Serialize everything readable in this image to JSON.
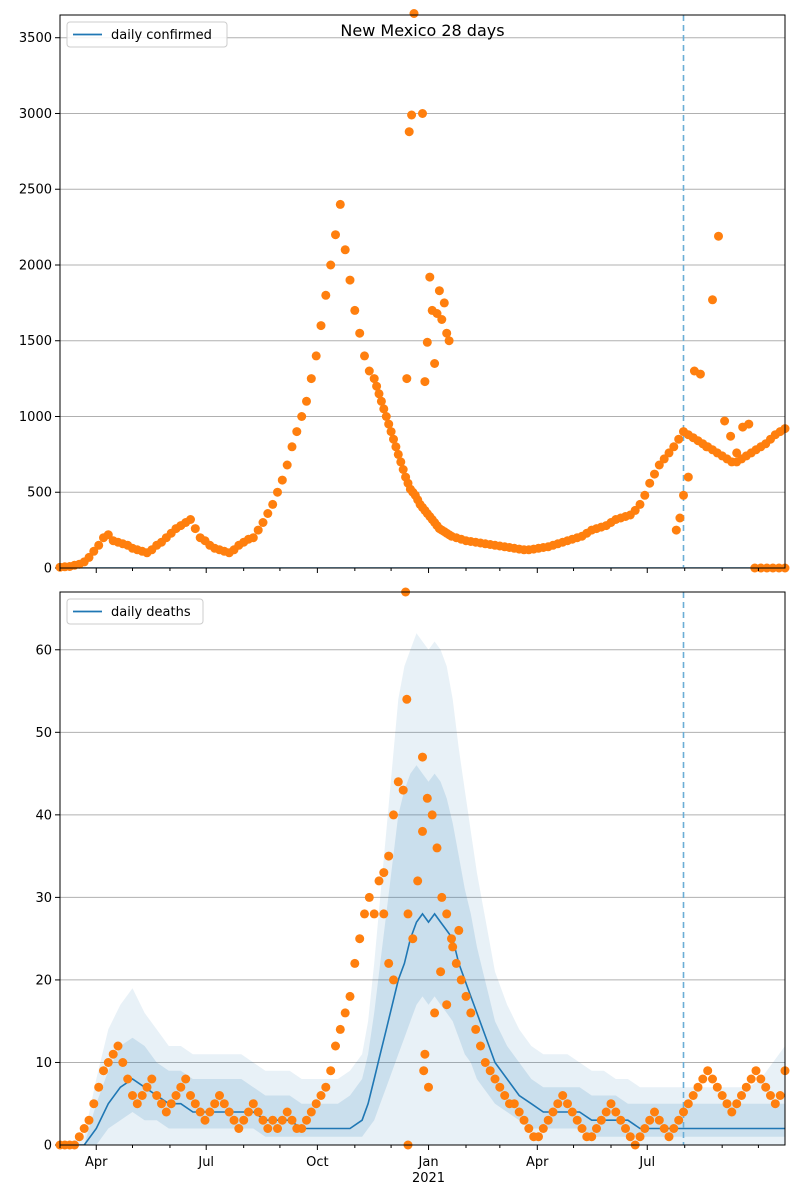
{
  "colors": {
    "line": "#1f77b4",
    "points": "#ff7f0e",
    "band": "#1f77b4",
    "grid": "#b0b0b0",
    "vline": "#6baed6"
  },
  "chart_data": [
    {
      "type": "scatter",
      "title": "New Mexico 28 days",
      "legend": {
        "label": "daily confirmed",
        "placement": "top-left"
      },
      "xlim": [
        0,
        600
      ],
      "ylim": [
        0,
        3650
      ],
      "y_ticks": [
        0,
        500,
        1000,
        1500,
        2000,
        2500,
        3000,
        3500
      ],
      "x_ticks": [
        {
          "x": 30,
          "label": "Apr"
        },
        {
          "x": 121,
          "label": "Jul"
        },
        {
          "x": 213,
          "label": "Oct"
        },
        {
          "x": 305,
          "label": "Jan"
        },
        {
          "x": 395,
          "label": "Apr"
        },
        {
          "x": 486,
          "label": "Jul"
        }
      ],
      "x_minor_ticks": [
        0,
        60,
        91,
        152,
        182,
        244,
        274,
        336,
        364,
        425,
        456,
        517,
        548,
        578
      ],
      "vline_x": 516,
      "line_series": {
        "name": "daily confirmed",
        "x": [
          0,
          600
        ],
        "y": [
          0,
          0
        ]
      },
      "points_x": [
        0,
        4,
        8,
        12,
        16,
        20,
        24,
        28,
        32,
        36,
        40,
        44,
        48,
        52,
        56,
        60,
        64,
        68,
        72,
        76,
        80,
        84,
        88,
        92,
        96,
        100,
        104,
        108,
        112,
        116,
        120,
        124,
        128,
        132,
        136,
        140,
        144,
        148,
        152,
        156,
        160,
        164,
        168,
        172,
        176,
        180,
        184,
        188,
        192,
        196,
        200,
        204,
        208,
        212,
        216,
        220,
        224,
        228,
        232,
        236,
        240,
        244,
        248,
        252,
        256,
        260,
        262,
        264,
        266,
        268,
        270,
        272,
        274,
        276,
        278,
        280,
        282,
        284,
        286,
        288,
        290,
        292,
        294,
        296,
        298,
        300,
        302,
        304,
        306,
        308,
        310,
        312,
        314,
        316,
        318,
        320,
        322,
        324,
        328,
        332,
        336,
        340,
        344,
        348,
        352,
        356,
        360,
        364,
        368,
        372,
        376,
        380,
        384,
        388,
        392,
        396,
        400,
        404,
        408,
        412,
        416,
        420,
        424,
        428,
        432,
        436,
        440,
        444,
        448,
        452,
        456,
        460,
        464,
        468,
        472,
        476,
        480,
        484,
        488,
        492,
        496,
        500,
        504,
        508,
        512,
        516,
        520,
        524,
        528,
        532,
        536,
        540,
        544,
        548,
        552,
        556,
        560,
        564,
        568,
        572,
        576,
        580,
        584,
        588,
        592,
        596,
        600,
        510,
        513,
        516,
        520,
        525,
        530,
        535,
        540,
        545,
        550,
        555,
        560,
        565,
        570,
        575,
        580,
        585,
        590,
        595,
        600,
        287,
        289,
        291,
        293,
        300,
        302,
        304,
        306,
        308,
        320,
        322,
        310,
        312,
        314,
        316,
        318
      ],
      "points_y": [
        5,
        8,
        10,
        18,
        25,
        40,
        70,
        110,
        150,
        200,
        220,
        180,
        170,
        160,
        150,
        130,
        120,
        110,
        100,
        120,
        150,
        170,
        200,
        230,
        260,
        280,
        300,
        320,
        260,
        200,
        180,
        150,
        130,
        120,
        110,
        100,
        120,
        150,
        170,
        190,
        200,
        250,
        300,
        360,
        420,
        500,
        580,
        680,
        800,
        900,
        1000,
        1100,
        1250,
        1400,
        1600,
        1800,
        2000,
        2200,
        2400,
        2100,
        1900,
        1700,
        1550,
        1400,
        1300,
        1250,
        1200,
        1150,
        1100,
        1050,
        1000,
        950,
        900,
        850,
        800,
        750,
        700,
        650,
        600,
        560,
        520,
        500,
        480,
        450,
        420,
        400,
        380,
        360,
        340,
        320,
        300,
        280,
        260,
        250,
        240,
        230,
        220,
        210,
        200,
        190,
        180,
        175,
        170,
        165,
        160,
        155,
        150,
        145,
        140,
        135,
        130,
        125,
        120,
        120,
        125,
        130,
        135,
        140,
        150,
        160,
        170,
        180,
        190,
        200,
        210,
        230,
        250,
        260,
        270,
        280,
        300,
        320,
        330,
        340,
        350,
        380,
        420,
        480,
        560,
        620,
        680,
        720,
        760,
        800,
        850,
        900,
        880,
        860,
        840,
        820,
        800,
        780,
        760,
        740,
        720,
        700,
        700,
        720,
        740,
        760,
        780,
        800,
        820,
        850,
        880,
        900,
        920,
        250,
        330,
        480,
        600,
        1300,
        1280,
        800,
        1770,
        2190,
        970,
        870,
        760,
        930,
        950,
        0,
        0,
        0,
        0,
        0,
        0,
        1250,
        2880,
        2990,
        3660,
        3000,
        1230,
        1490,
        1920,
        1700,
        1550,
        1500,
        1350,
        1680,
        1830,
        1640,
        1750
      ]
    },
    {
      "type": "scatter",
      "title": "",
      "legend": {
        "label": "daily deaths",
        "placement": "top-left"
      },
      "xlim": [
        0,
        600
      ],
      "ylim": [
        0,
        67
      ],
      "y_ticks": [
        0,
        10,
        20,
        30,
        40,
        50,
        60
      ],
      "x_ticks": [
        {
          "x": 30,
          "label": "Apr"
        },
        {
          "x": 121,
          "label": "Jul"
        },
        {
          "x": 213,
          "label": "Oct"
        },
        {
          "x": 305,
          "label": "Jan"
        },
        {
          "x": 395,
          "label": "Apr"
        },
        {
          "x": 486,
          "label": "Jul"
        }
      ],
      "x_minor_ticks": [
        0,
        60,
        91,
        152,
        182,
        244,
        274,
        336,
        364,
        425,
        456,
        517,
        548,
        578
      ],
      "x_sublabel": "2021",
      "x_sublabel_x": 305,
      "vline_x": 516,
      "line_series": {
        "name": "daily deaths",
        "x": [
          0,
          20,
          30,
          40,
          50,
          60,
          70,
          80,
          90,
          100,
          110,
          120,
          130,
          140,
          150,
          160,
          170,
          180,
          190,
          200,
          210,
          220,
          230,
          240,
          250,
          255,
          260,
          265,
          270,
          275,
          280,
          285,
          290,
          295,
          300,
          305,
          310,
          315,
          320,
          325,
          330,
          335,
          340,
          345,
          350,
          355,
          360,
          370,
          380,
          390,
          400,
          410,
          420,
          430,
          440,
          450,
          460,
          470,
          480,
          490,
          500,
          510,
          520,
          530,
          540,
          550,
          560,
          570,
          580,
          590,
          600
        ],
        "y": [
          0,
          0,
          2,
          5,
          7,
          8,
          7,
          6,
          5,
          5,
          4,
          4,
          4,
          4,
          4,
          4,
          3,
          3,
          3,
          2,
          2,
          2,
          2,
          2,
          3,
          5,
          8,
          11,
          14,
          17,
          20,
          22,
          25,
          27,
          28,
          27,
          28,
          27,
          26,
          25,
          22,
          20,
          18,
          16,
          14,
          12,
          10,
          8,
          6,
          5,
          4,
          4,
          4,
          4,
          3,
          3,
          3,
          3,
          2,
          2,
          2,
          2,
          2,
          2,
          2,
          2,
          2,
          2,
          2,
          2,
          2
        ]
      },
      "band_x": [
        0,
        20,
        30,
        40,
        50,
        60,
        70,
        80,
        90,
        100,
        110,
        120,
        130,
        140,
        150,
        160,
        170,
        180,
        190,
        200,
        210,
        220,
        230,
        240,
        250,
        255,
        260,
        265,
        270,
        275,
        280,
        285,
        290,
        295,
        300,
        305,
        310,
        315,
        320,
        325,
        330,
        335,
        340,
        345,
        350,
        355,
        360,
        370,
        380,
        390,
        400,
        410,
        420,
        430,
        440,
        450,
        460,
        470,
        480,
        490,
        500,
        510,
        520,
        530,
        540,
        550,
        560,
        570,
        580,
        590,
        600
      ],
      "band_outer_upper": [
        0,
        1,
        8,
        14,
        17,
        19,
        16,
        14,
        12,
        12,
        11,
        11,
        11,
        11,
        11,
        10,
        9,
        9,
        9,
        8,
        8,
        8,
        8,
        9,
        11,
        15,
        22,
        30,
        38,
        46,
        54,
        58,
        60,
        62,
        61,
        60,
        61,
        60,
        58,
        54,
        48,
        43,
        38,
        33,
        29,
        25,
        21,
        17,
        14,
        12,
        11,
        11,
        11,
        10,
        9,
        9,
        8,
        8,
        7,
        7,
        7,
        7,
        7,
        7,
        7,
        7,
        7,
        7,
        8,
        10,
        12
      ],
      "band_inner_upper": [
        0,
        0,
        5,
        9,
        12,
        13,
        12,
        10,
        9,
        9,
        8,
        8,
        8,
        8,
        8,
        7,
        6,
        6,
        6,
        5,
        5,
        5,
        5,
        6,
        8,
        11,
        16,
        22,
        28,
        34,
        40,
        43,
        45,
        46,
        45,
        44,
        45,
        44,
        42,
        39,
        35,
        31,
        28,
        24,
        21,
        18,
        15,
        12,
        10,
        8,
        7,
        7,
        7,
        7,
        6,
        6,
        6,
        5,
        5,
        5,
        5,
        5,
        5,
        5,
        5,
        5,
        5,
        5,
        5,
        5,
        5
      ],
      "band_inner_lower": [
        0,
        0,
        0,
        2,
        3,
        4,
        3,
        3,
        2,
        2,
        2,
        2,
        2,
        2,
        2,
        2,
        1,
        1,
        1,
        1,
        1,
        1,
        1,
        1,
        1,
        2,
        3,
        5,
        7,
        9,
        11,
        13,
        15,
        17,
        18,
        17,
        18,
        17,
        16,
        15,
        13,
        11,
        10,
        8,
        7,
        6,
        5,
        4,
        3,
        2,
        2,
        2,
        2,
        2,
        1,
        1,
        1,
        1,
        1,
        1,
        1,
        1,
        1,
        1,
        1,
        1,
        1,
        1,
        1,
        1,
        1
      ],
      "points_x": [
        0,
        4,
        8,
        12,
        16,
        20,
        24,
        28,
        32,
        36,
        40,
        44,
        48,
        52,
        56,
        60,
        64,
        68,
        72,
        76,
        80,
        84,
        88,
        92,
        96,
        100,
        104,
        108,
        112,
        116,
        120,
        124,
        128,
        132,
        136,
        140,
        144,
        148,
        152,
        156,
        160,
        164,
        168,
        172,
        176,
        180,
        184,
        188,
        192,
        196,
        200,
        204,
        208,
        212,
        216,
        220,
        224,
        228,
        232,
        236,
        240,
        244,
        248,
        252,
        256,
        260,
        264,
        268,
        272,
        276,
        280,
        284,
        288,
        292,
        296,
        300,
        304,
        308,
        312,
        316,
        320,
        324,
        328,
        332,
        336,
        340,
        344,
        348,
        352,
        356,
        360,
        364,
        368,
        372,
        376,
        380,
        384,
        388,
        392,
        396,
        400,
        404,
        408,
        412,
        416,
        420,
        424,
        428,
        432,
        436,
        440,
        444,
        448,
        452,
        456,
        460,
        464,
        468,
        472,
        476,
        480,
        484,
        488,
        492,
        496,
        500,
        504,
        508,
        512,
        516,
        520,
        524,
        528,
        532,
        536,
        540,
        544,
        548,
        552,
        556,
        560,
        564,
        568,
        572,
        576,
        580,
        584,
        588,
        592,
        596,
        600,
        286,
        287,
        288,
        300,
        301,
        302,
        305,
        310,
        315,
        320,
        325,
        330,
        268,
        272,
        276
      ],
      "points_y": [
        0,
        0,
        0,
        0,
        1,
        2,
        3,
        5,
        7,
        9,
        10,
        11,
        12,
        10,
        8,
        6,
        5,
        6,
        7,
        8,
        6,
        5,
        4,
        5,
        6,
        7,
        8,
        6,
        5,
        4,
        3,
        4,
        5,
        6,
        5,
        4,
        3,
        2,
        3,
        4,
        5,
        4,
        3,
        2,
        3,
        2,
        3,
        4,
        3,
        2,
        2,
        3,
        4,
        5,
        6,
        7,
        9,
        12,
        14,
        16,
        18,
        22,
        25,
        28,
        30,
        28,
        32,
        33,
        35,
        40,
        44,
        43,
        28,
        25,
        32,
        38,
        42,
        40,
        36,
        30,
        28,
        25,
        22,
        20,
        18,
        16,
        14,
        12,
        10,
        9,
        8,
        7,
        6,
        5,
        5,
        4,
        3,
        2,
        1,
        1,
        2,
        3,
        4,
        5,
        6,
        5,
        4,
        3,
        2,
        1,
        1,
        2,
        3,
        4,
        5,
        4,
        3,
        2,
        1,
        0,
        1,
        2,
        3,
        4,
        3,
        2,
        1,
        2,
        3,
        4,
        5,
        6,
        7,
        8,
        9,
        8,
        7,
        6,
        5,
        4,
        5,
        6,
        7,
        8,
        9,
        8,
        7,
        6,
        5,
        6,
        9,
        67,
        54,
        0,
        47,
        9,
        11,
        7,
        16,
        21,
        17,
        24,
        26,
        28,
        22,
        20
      ]
    }
  ]
}
